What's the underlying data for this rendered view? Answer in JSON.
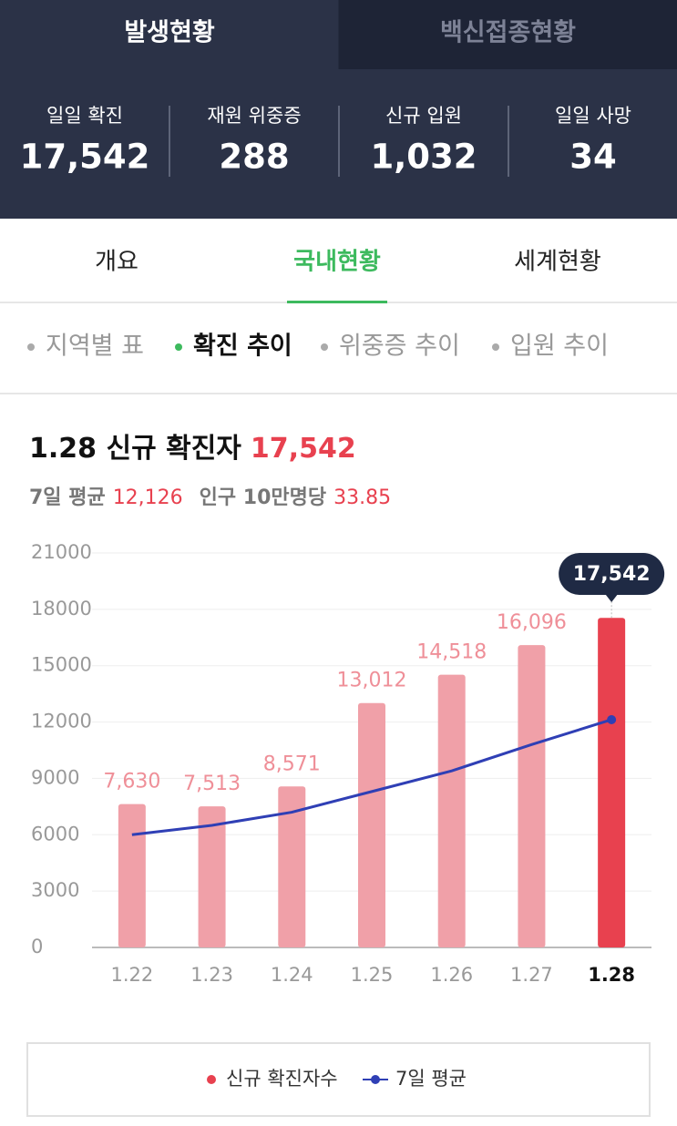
{
  "top_tabs": {
    "items": [
      "발생현황",
      "백신접종현황"
    ],
    "active_index": 0
  },
  "stats": {
    "items": [
      {
        "label": "일일 확진",
        "value": "17,542"
      },
      {
        "label": "재원 위중증",
        "value": "288"
      },
      {
        "label": "신규 입원",
        "value": "1,032"
      },
      {
        "label": "일일 사망",
        "value": "34"
      }
    ]
  },
  "nav": {
    "items": [
      "개요",
      "국내현황",
      "세계현황"
    ],
    "active_index": 1
  },
  "subnav": {
    "items": [
      "지역별 표",
      "확진 추이",
      "위중증 추이",
      "입원 추이"
    ],
    "active_index": 1
  },
  "chart_data": {
    "type": "bar",
    "title": "1.28 신규 확진자",
    "title_value": "17,542",
    "summary": [
      {
        "label": "7일 평균",
        "value": "12,126"
      },
      {
        "label": "인구 10만명당",
        "value": "33.85"
      }
    ],
    "categories": [
      "1.22",
      "1.23",
      "1.24",
      "1.25",
      "1.26",
      "1.27",
      "1.28"
    ],
    "series": [
      {
        "name": "신규 확진자수",
        "color": "#f0a0a8",
        "highlight_color": "#e8414f",
        "type": "bar",
        "values": [
          7630,
          7513,
          8571,
          13012,
          14518,
          16096,
          17542
        ],
        "value_labels": [
          "7,630",
          "7,513",
          "8,571",
          "13,012",
          "14,518",
          "16,096",
          "17,542"
        ]
      },
      {
        "name": "7일 평균",
        "color": "#2f3fb5",
        "type": "line",
        "values": [
          6000,
          6500,
          7200,
          8300,
          9400,
          10800,
          12126
        ]
      }
    ],
    "ylim": [
      0,
      21000
    ],
    "yticks": [
      0,
      3000,
      6000,
      9000,
      12000,
      15000,
      18000,
      21000
    ],
    "grid": true
  }
}
